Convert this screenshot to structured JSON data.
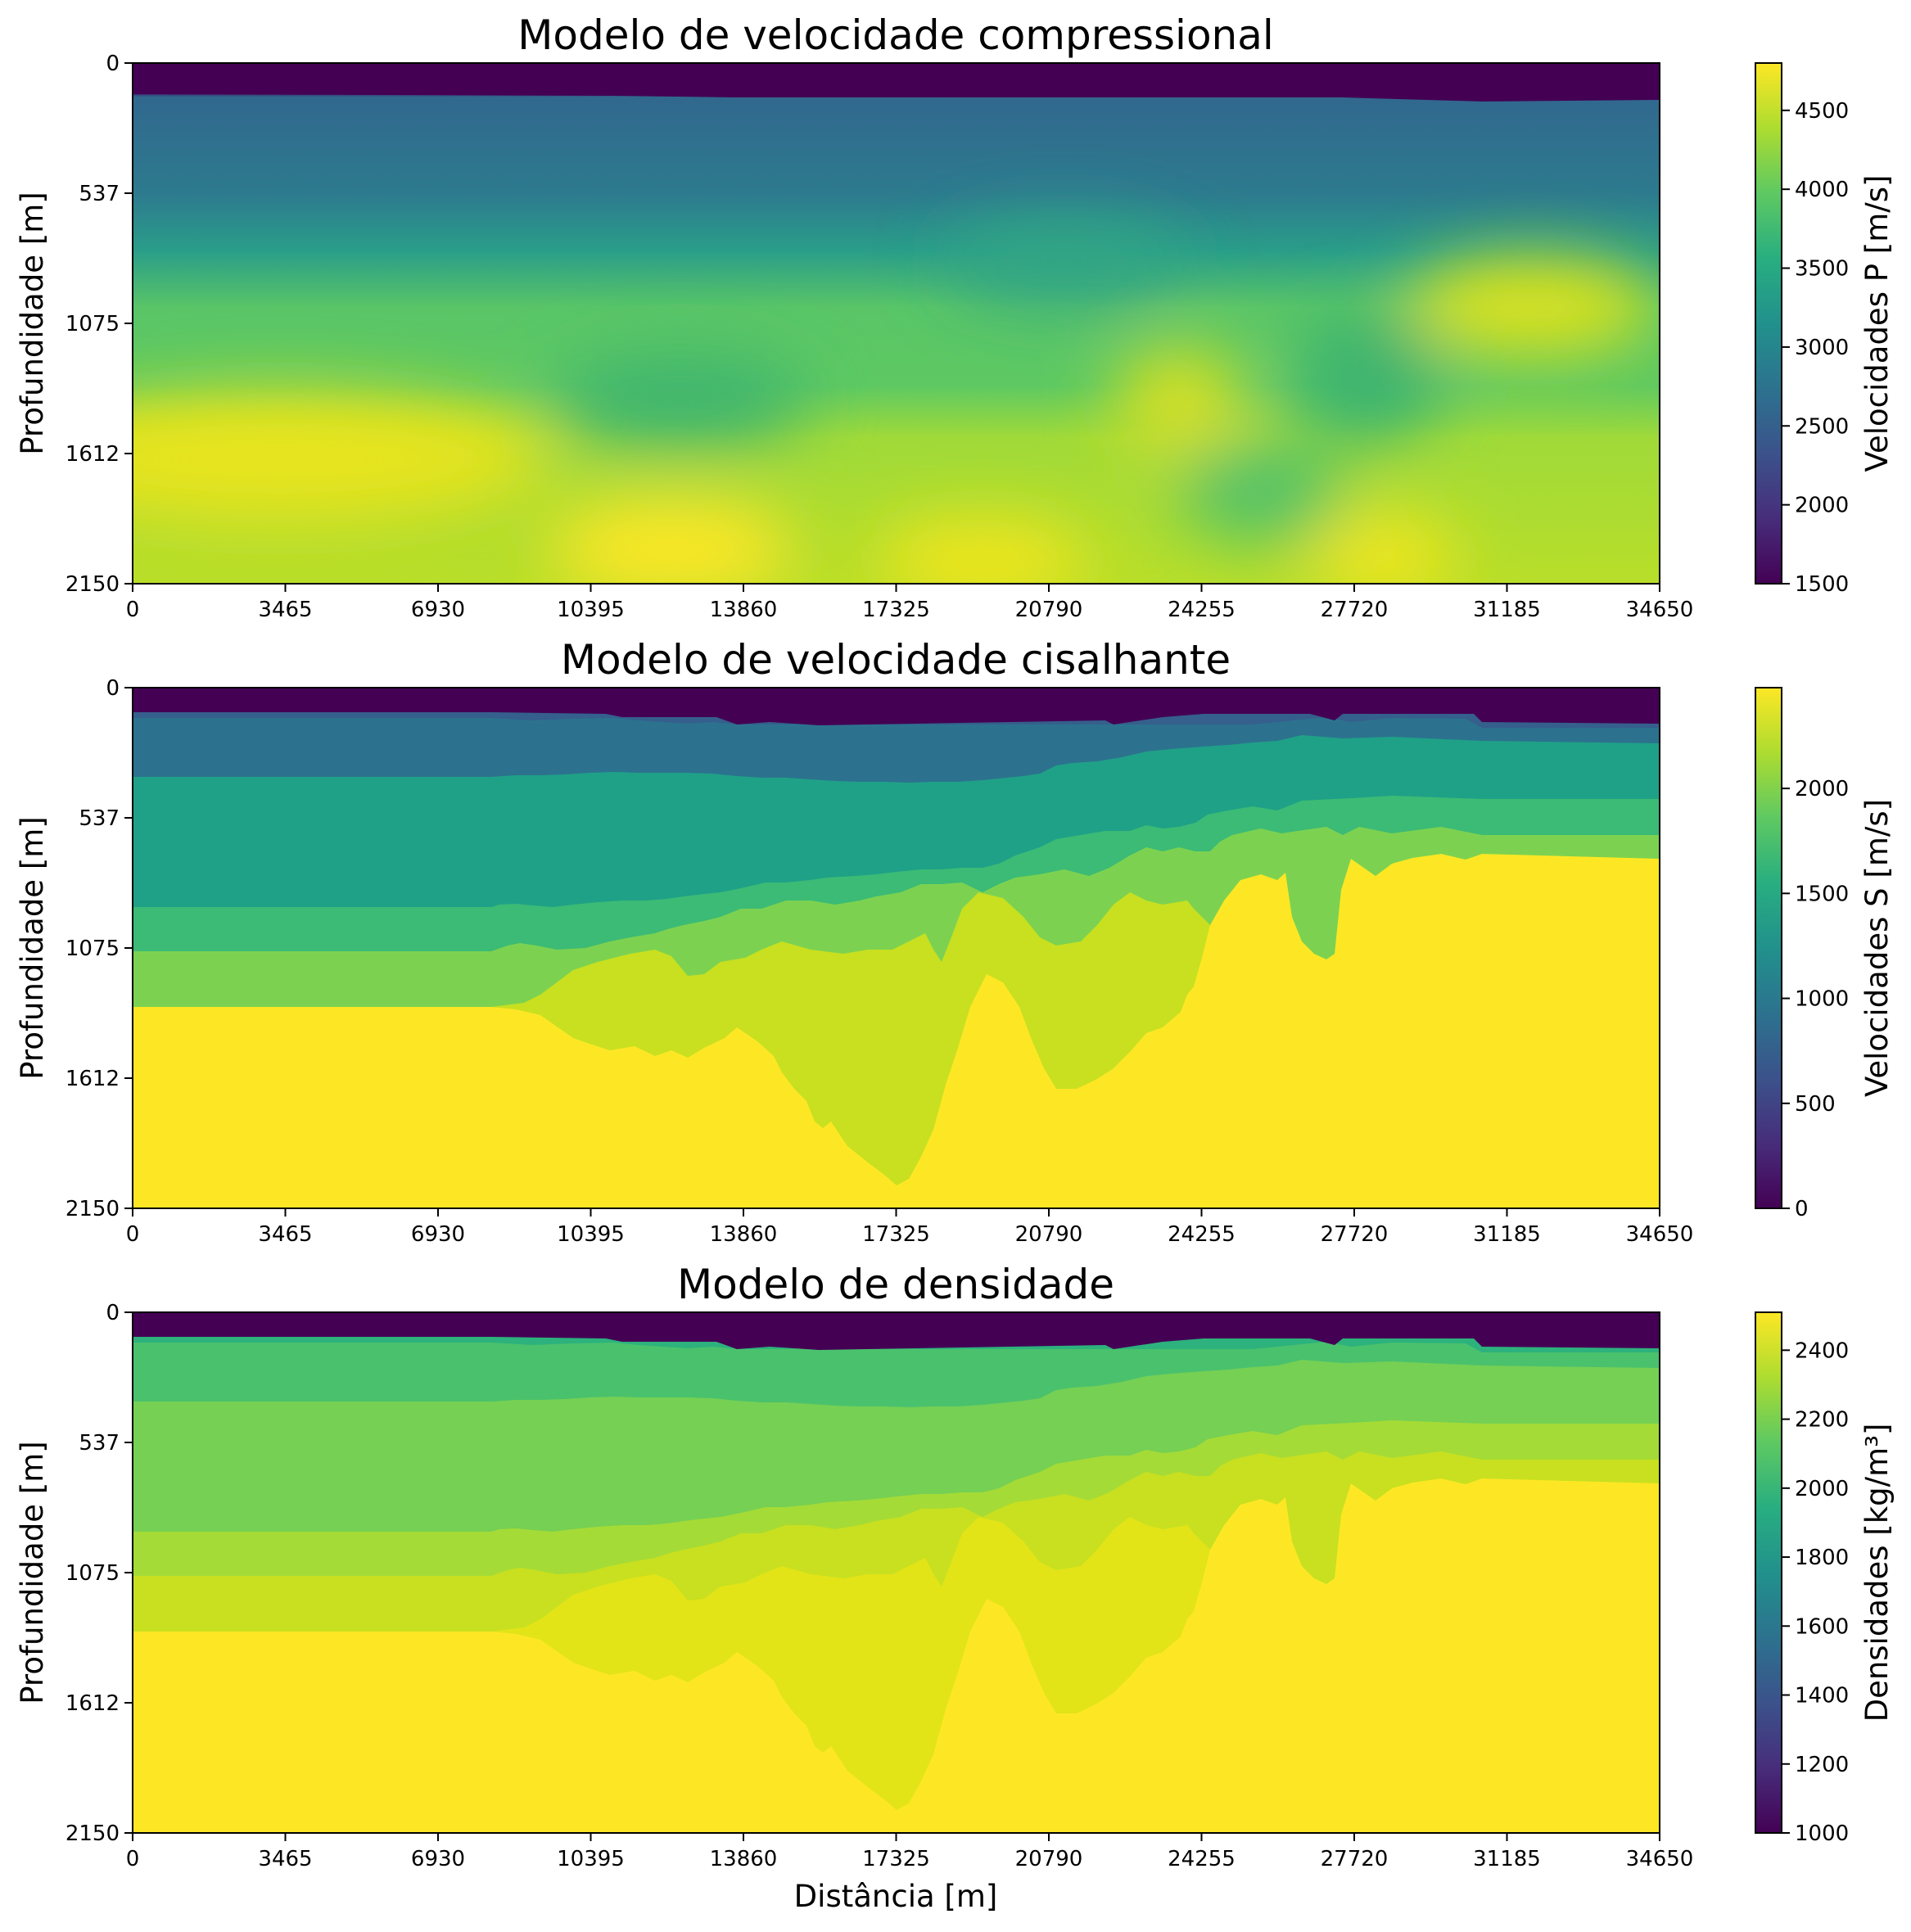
{
  "charts": [
    {
      "type": "heatmap",
      "title": "Modelo de velocidade compressional",
      "ylabel": "Profundidade [m]",
      "xlabel": "",
      "x_ticks": [
        "0",
        "3465",
        "6930",
        "10395",
        "13860",
        "17325",
        "20790",
        "24255",
        "27720",
        "31185",
        "34650"
      ],
      "y_ticks": [
        "0",
        "537",
        "1075",
        "1612",
        "2150"
      ],
      "xlim": [
        0,
        34650
      ],
      "ylim": [
        2150,
        0
      ],
      "colormap": "viridis",
      "colorbar": {
        "label": "Velocidades P [m/s]",
        "range": [
          1500,
          4800
        ],
        "ticks": [
          "1500",
          "2000",
          "2500",
          "3000",
          "3500",
          "4000",
          "4500"
        ],
        "tick_values": [
          1500,
          2000,
          2500,
          3000,
          3500,
          4000,
          4500
        ]
      }
    },
    {
      "type": "heatmap",
      "title": "Modelo de velocidade cisalhante",
      "ylabel": "Profundidade [m]",
      "xlabel": "",
      "x_ticks": [
        "0",
        "3465",
        "6930",
        "10395",
        "13860",
        "17325",
        "20790",
        "24255",
        "27720",
        "31185",
        "34650"
      ],
      "y_ticks": [
        "0",
        "537",
        "1075",
        "1612",
        "2150"
      ],
      "xlim": [
        0,
        34650
      ],
      "ylim": [
        2150,
        0
      ],
      "colormap": "viridis",
      "colorbar": {
        "label": "Velocidades S [m/s]",
        "range": [
          0,
          2480
        ],
        "ticks": [
          "0",
          "500",
          "1000",
          "1500",
          "2000"
        ],
        "tick_values": [
          0,
          500,
          1000,
          1500,
          2000
        ]
      }
    },
    {
      "type": "heatmap",
      "title": "Modelo de densidade",
      "ylabel": "Profundidade [m]",
      "xlabel": "Distância [m]",
      "x_ticks": [
        "0",
        "3465",
        "6930",
        "10395",
        "13860",
        "17325",
        "20790",
        "24255",
        "27720",
        "31185",
        "34650"
      ],
      "y_ticks": [
        "0",
        "537",
        "1075",
        "1612",
        "2150"
      ],
      "xlim": [
        0,
        34650
      ],
      "ylim": [
        2150,
        0
      ],
      "colormap": "viridis",
      "colorbar": {
        "label": "Densidades [kg/m³]",
        "range": [
          1000,
          2510
        ],
        "ticks": [
          "1000",
          "1200",
          "1400",
          "1600",
          "1800",
          "2000",
          "2200",
          "2400"
        ],
        "tick_values": [
          1000,
          1200,
          1400,
          1600,
          1800,
          2000,
          2200,
          2400
        ]
      }
    }
  ],
  "chart_data": [
    {
      "type": "heatmap",
      "title": "Modelo de velocidade compressional",
      "value_label": "Velocidades P [m/s]",
      "x_range": [
        0,
        34650
      ],
      "depth_range": [
        0,
        2150
      ],
      "vmin": 1500,
      "vmax": 4800,
      "layers_approx": [
        {
          "depth_top": 0,
          "depth_bottom": 140,
          "value": 1500
        },
        {
          "depth_top": 140,
          "depth_bottom": 600,
          "value": 2800
        },
        {
          "depth_top": 600,
          "depth_bottom": 1300,
          "value": 3800
        },
        {
          "depth_top": 1300,
          "depth_bottom": 2150,
          "value": 4300
        }
      ]
    },
    {
      "type": "heatmap",
      "title": "Modelo de velocidade cisalhante",
      "value_label": "Velocidades S [m/s]",
      "x_range": [
        0,
        34650
      ],
      "depth_range": [
        0,
        2150
      ],
      "vmin": 0,
      "vmax": 2480,
      "layers_approx": [
        {
          "depth_top": 0,
          "depth_bottom": 140,
          "value": 0
        },
        {
          "depth_top": 140,
          "depth_bottom": 350,
          "value": 900
        },
        {
          "depth_top": 350,
          "depth_bottom": 900,
          "value": 1350
        },
        {
          "depth_top": 900,
          "depth_bottom": 1300,
          "value": 1900
        },
        {
          "depth_top": 1300,
          "depth_bottom": 2150,
          "value": 2460
        }
      ]
    },
    {
      "type": "heatmap",
      "title": "Modelo de densidade",
      "value_label": "Densidades [kg/m³]",
      "x_range": [
        0,
        34650
      ],
      "depth_range": [
        0,
        2150
      ],
      "vmin": 1000,
      "vmax": 2510,
      "layers_approx": [
        {
          "depth_top": 0,
          "depth_bottom": 140,
          "value": 1000
        },
        {
          "depth_top": 140,
          "depth_bottom": 350,
          "value": 2080
        },
        {
          "depth_top": 350,
          "depth_bottom": 900,
          "value": 2230
        },
        {
          "depth_top": 900,
          "depth_bottom": 1300,
          "value": 2380
        },
        {
          "depth_top": 1300,
          "depth_bottom": 2150,
          "value": 2500
        }
      ]
    }
  ]
}
